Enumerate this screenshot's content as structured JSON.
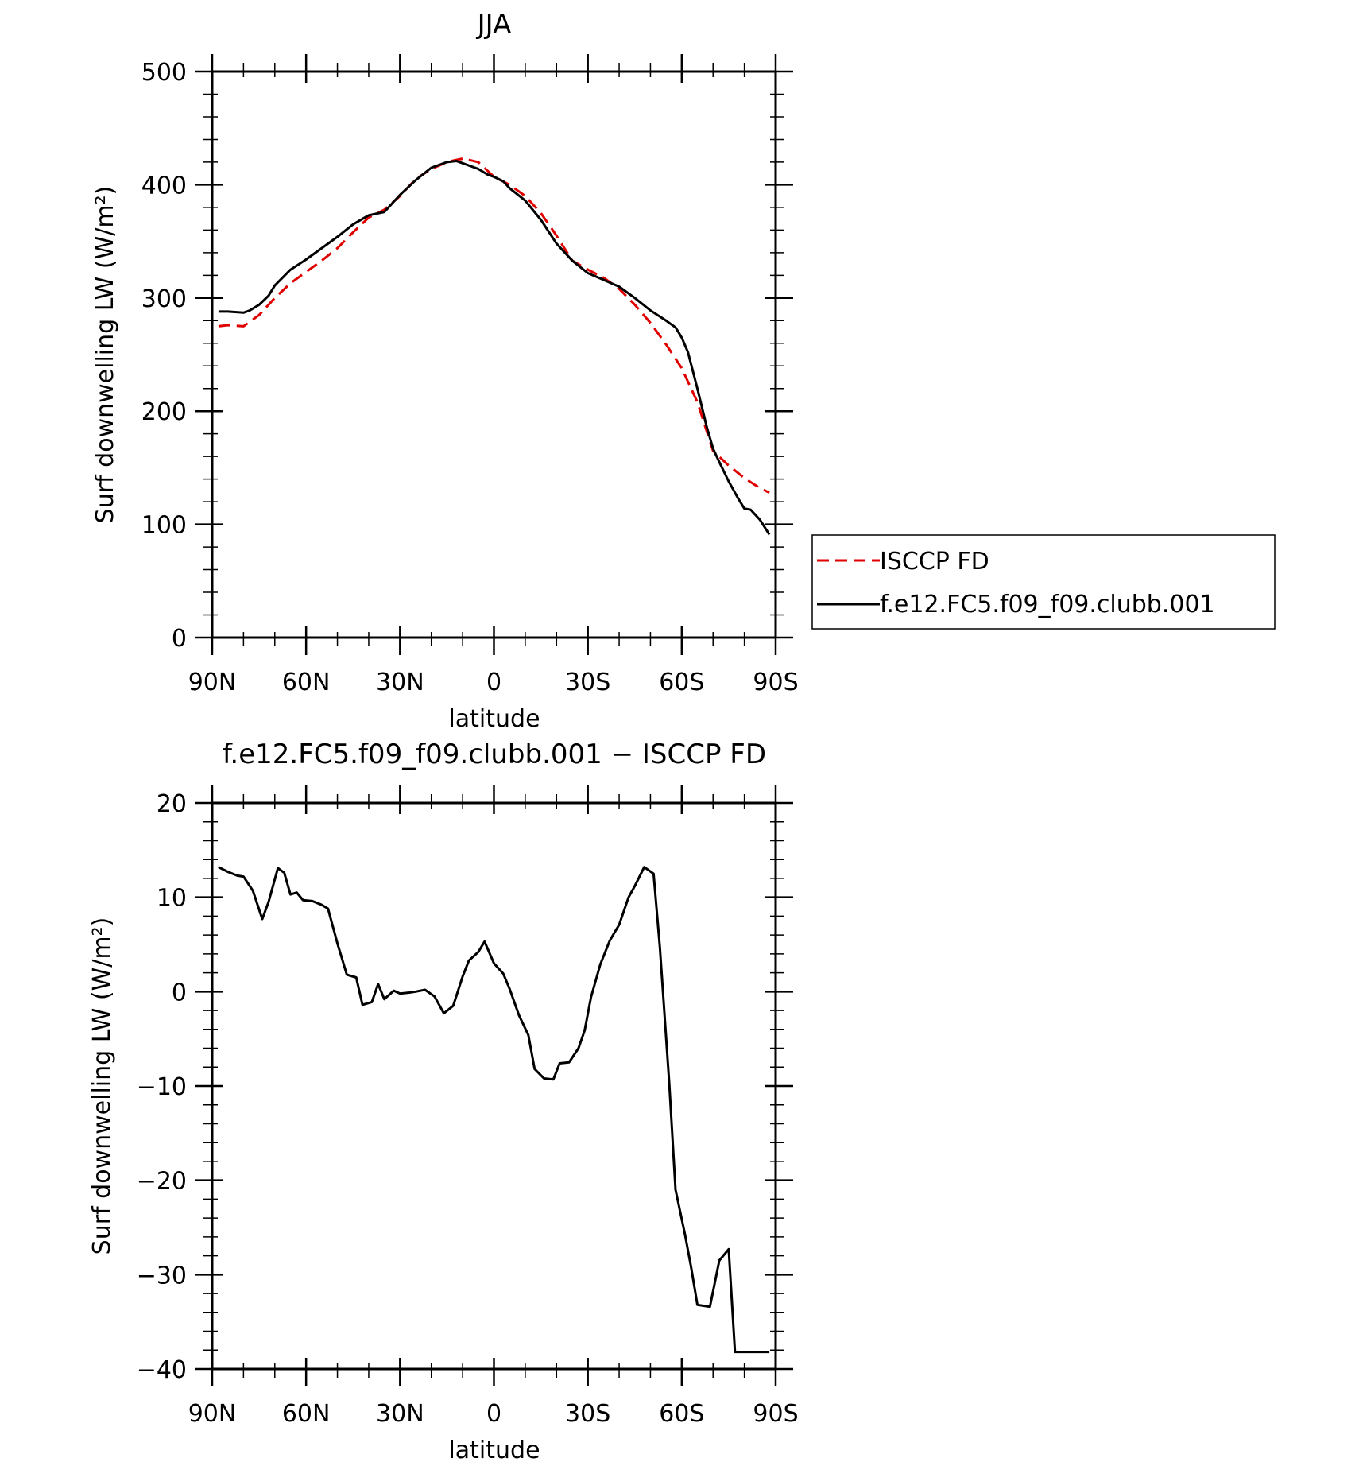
{
  "chart_data": [
    {
      "type": "line",
      "title": "JJA",
      "xlabel": "latitude",
      "ylabel": "Surf downwelling LW (W/m²)",
      "ylim": [
        0,
        500
      ],
      "xlim": [
        90,
        -90
      ],
      "xticks": [
        90,
        60,
        30,
        0,
        -30,
        -60,
        -90
      ],
      "xtick_labels": [
        "90N",
        "60N",
        "30N",
        "0",
        "30S",
        "60S",
        "90S"
      ],
      "yticks": [
        0,
        100,
        200,
        300,
        400,
        500
      ],
      "ytick_labels": [
        "0",
        "100",
        "200",
        "300",
        "400",
        "500"
      ],
      "grid": false,
      "legend_position": "right",
      "series": [
        {
          "name": "ISCCP FD",
          "color": "#e00000",
          "dash": true,
          "x": [
            88,
            85,
            80,
            75,
            70,
            65,
            60,
            55,
            50,
            45,
            40,
            35,
            30,
            25,
            20,
            15,
            12,
            10,
            8,
            5,
            0,
            -5,
            -10,
            -15,
            -20,
            -25,
            -30,
            -35,
            -40,
            -45,
            -50,
            -55,
            -60,
            -65,
            -70,
            -75,
            -80,
            -85,
            -88
          ],
          "y": [
            275,
            276,
            275,
            285,
            300,
            313,
            323,
            333,
            344,
            358,
            371,
            378,
            390,
            405,
            414,
            420,
            422,
            423,
            422,
            420,
            407,
            400,
            390,
            375,
            355,
            333,
            325,
            318,
            308,
            294,
            278,
            259,
            238,
            208,
            165,
            152,
            141,
            132,
            128
          ]
        },
        {
          "name": "f.e12.FC5.f09_f09.clubb.001",
          "color": "#000000",
          "dash": false,
          "x": [
            88,
            85,
            80,
            78,
            75,
            72,
            70,
            65,
            60,
            55,
            50,
            45,
            40,
            35,
            30,
            25,
            20,
            15,
            12,
            10,
            5,
            2,
            0,
            -3,
            -5,
            -10,
            -15,
            -20,
            -25,
            -30,
            -35,
            -40,
            -45,
            -50,
            -55,
            -58,
            -60,
            -62,
            -65,
            -68,
            -70,
            -72,
            -75,
            -78,
            -80,
            -82,
            -85,
            -88
          ],
          "y": [
            288,
            288,
            287,
            289,
            294,
            302,
            311,
            325,
            334,
            344,
            354,
            365,
            373,
            376,
            391,
            404,
            415,
            420,
            421,
            419,
            414,
            409,
            407,
            403,
            397,
            386,
            369,
            348,
            333,
            322,
            316,
            310,
            300,
            289,
            280,
            274,
            265,
            252,
            220,
            186,
            167,
            155,
            138,
            123,
            114,
            113,
            104,
            91
          ]
        }
      ]
    },
    {
      "type": "line",
      "title": "f.e12.FC5.f09_f09.clubb.001 − ISCCP FD",
      "xlabel": "latitude",
      "ylabel": "Surf downwelling LW (W/m²)",
      "ylim": [
        -40,
        20
      ],
      "xlim": [
        90,
        -90
      ],
      "xticks": [
        90,
        60,
        30,
        0,
        -30,
        -60,
        -90
      ],
      "xtick_labels": [
        "90N",
        "60N",
        "30N",
        "0",
        "30S",
        "60S",
        "90S"
      ],
      "yticks": [
        -40,
        -30,
        -20,
        -10,
        0,
        10,
        20
      ],
      "ytick_labels": [
        "−40",
        "−30",
        "−20",
        "−10",
        "0",
        "10",
        "20"
      ],
      "grid": false,
      "series": [
        {
          "color": "#000000",
          "dash": false,
          "x": [
            88,
            85,
            82,
            80,
            77,
            74,
            72,
            69,
            67,
            65,
            63,
            61,
            58,
            55,
            53,
            50,
            47,
            44,
            42,
            39,
            37,
            35,
            32,
            30,
            27,
            25,
            22,
            19,
            16,
            13,
            10,
            8,
            5,
            3,
            0,
            -3,
            -5,
            -8,
            -11,
            -13,
            -16,
            -19,
            -21,
            -24,
            -27,
            -29,
            -31,
            -34,
            -37,
            -40,
            -43,
            -45,
            -48,
            -51,
            -53,
            -56,
            -58,
            -61,
            -63,
            -65,
            -69,
            -72,
            -75,
            -77,
            -78,
            -81,
            -84,
            -88
          ],
          "y": [
            13.2,
            12.7,
            12.3,
            12.2,
            10.7,
            7.7,
            9.5,
            13.1,
            12.6,
            10.3,
            10.5,
            9.7,
            9.6,
            9.2,
            8.8,
            5.1,
            1.8,
            1.5,
            -1.4,
            -1.1,
            0.8,
            -0.8,
            0.1,
            -0.2,
            -0.1,
            0.0,
            0.2,
            -0.5,
            -2.3,
            -1.5,
            1.6,
            3.3,
            4.2,
            5.3,
            3.0,
            1.9,
            0.3,
            -2.5,
            -4.6,
            -8.2,
            -9.2,
            -9.3,
            -7.6,
            -7.5,
            -6.0,
            -4.1,
            -0.6,
            2.9,
            5.4,
            7.1,
            10.0,
            11.2,
            13.2,
            12.5,
            4.7,
            -9.7,
            -21.0,
            -25.7,
            -29.2,
            -33.2,
            -33.4,
            -28.5,
            -27.3,
            -38.2,
            -38.2,
            -38.2,
            -38.2,
            -38.2
          ]
        }
      ]
    }
  ],
  "legend": {
    "items": [
      {
        "label": "ISCCP FD"
      },
      {
        "label": "f.e12.FC5.f09_f09.clubb.001"
      }
    ]
  }
}
